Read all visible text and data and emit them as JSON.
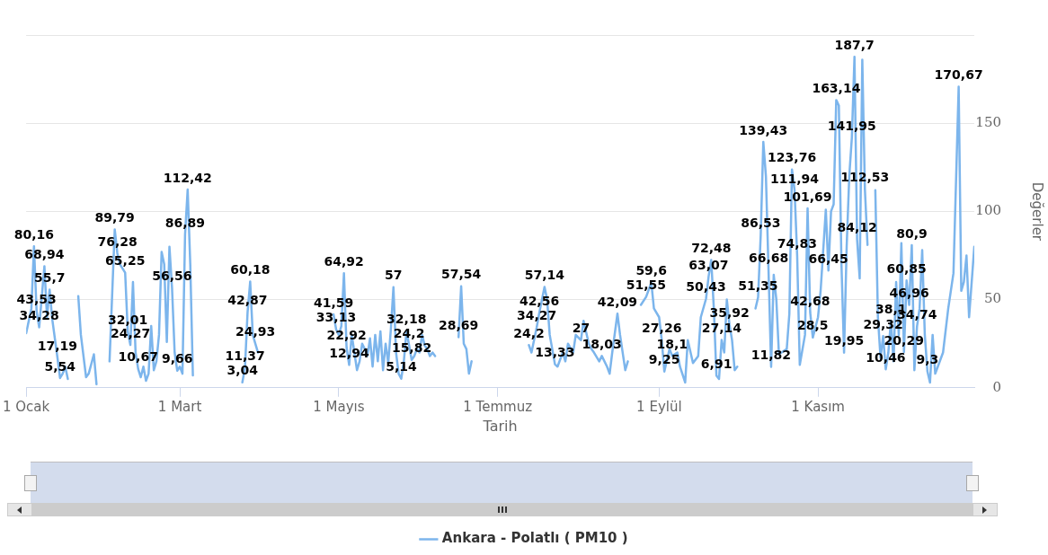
{
  "chart_data": {
    "type": "line",
    "xlabel": "Tarih",
    "ylabel": "Değerler",
    "xlim": [
      "--01-01",
      "--12-31"
    ],
    "xticks": [
      {
        "value": "--01-01",
        "label": "1 Ocak"
      },
      {
        "value": "--03-01",
        "label": "1 Mart"
      },
      {
        "value": "--05-01",
        "label": "1 Mayıs"
      },
      {
        "value": "--07-01",
        "label": "1 Temmuz"
      },
      {
        "value": "--09-01",
        "label": "1 Eylül"
      },
      {
        "value": "--11-01",
        "label": "1 Kasım"
      }
    ],
    "ylim": [
      0,
      200
    ],
    "yticks": [
      0,
      50,
      100,
      150,
      {
        "value": 200,
        "label": null
      }
    ],
    "grid": "y",
    "legend": "bottom",
    "marker": "none",
    "x": [
      "--01-01",
      "--01-03",
      "--01-04",
      "--01-05",
      "--01-06",
      "--01-08",
      "--01-09",
      "--01-10",
      "--01-11",
      "--01-13",
      "--01-14",
      "--01-15",
      "--01-16",
      "--01-17",
      "--01-19",
      "--01-21",
      "--01-22",
      "--01-24",
      "--01-25",
      "--01-27",
      "--01-28",
      "--01-30",
      "--02-02",
      "--02-04",
      "--02-05",
      "--02-06",
      "--02-08",
      "--02-09",
      "--02-10",
      "--02-11",
      "--02-12",
      "--02-13",
      "--02-14",
      "--02-15",
      "--02-16",
      "--02-17",
      "--02-18",
      "--02-19",
      "--02-20",
      "--02-21",
      "--02-22",
      "--02-23",
      "--02-24",
      "--02-25",
      "--02-26",
      "--02-27",
      "--02-28",
      "--03-01",
      "--03-02",
      "--03-03",
      "--03-04",
      "--03-05",
      "--03-06",
      "--03-08",
      "--03-25",
      "--03-26",
      "--03-27",
      "--03-28",
      "--03-29",
      "--03-30",
      "--03-31",
      "--04-02",
      "--04-29",
      "--04-30",
      "--05-01",
      "--05-02",
      "--05-03",
      "--05-04",
      "--05-05",
      "--05-06",
      "--05-07",
      "--05-08",
      "--05-09",
      "--05-10",
      "--05-11",
      "--05-12",
      "--05-13",
      "--05-14",
      "--05-15",
      "--05-16",
      "--05-17",
      "--05-18",
      "--05-19",
      "--05-20",
      "--05-21",
      "--05-22",
      "--05-23",
      "--05-24",
      "--05-25",
      "--05-26",
      "--05-27",
      "--05-28",
      "--05-29",
      "--05-30",
      "--05-31",
      "--06-01",
      "--06-02",
      "--06-03",
      "--06-04",
      "--06-05",
      "--06-06",
      "--06-07",
      "--06-09",
      "--06-16",
      "--06-17",
      "--06-18",
      "--06-19",
      "--06-20",
      "--06-21",
      "--06-23",
      "--07-13",
      "--07-14",
      "--07-16",
      "--07-17",
      "--07-19",
      "--07-20",
      "--07-21",
      "--07-23",
      "--07-24",
      "--07-26",
      "--07-27",
      "--07-28",
      "--07-30",
      "--07-31",
      "--08-02",
      "--08-03",
      "--08-05",
      "--08-06",
      "--08-07",
      "--08-09",
      "--08-10",
      "--08-12",
      "--08-13",
      "--08-14",
      "--08-16",
      "--08-17",
      "--08-19",
      "--08-20",
      "--08-23",
      "--08-25",
      "--08-27",
      "--08-29",
      "--08-30",
      "--09-01",
      "--09-02",
      "--09-03",
      "--09-05",
      "--09-06",
      "--09-08",
      "--09-09",
      "--09-11",
      "--09-12",
      "--09-14",
      "--09-16",
      "--09-17",
      "--09-19",
      "--09-20",
      "--09-21",
      "--09-22",
      "--09-23",
      "--09-24",
      "--09-25",
      "--09-26",
      "--09-27",
      "--09-28",
      "--09-29",
      "--09-30",
      "--10-01",
      "--10-03",
      "--10-08",
      "--10-09",
      "--10-10",
      "--10-11",
      "--10-12",
      "--10-13",
      "--10-14",
      "--10-15",
      "--10-16",
      "--10-17",
      "--10-18",
      "--10-20",
      "--10-21",
      "--10-22",
      "--10-23",
      "--10-24",
      "--10-25",
      "--10-27",
      "--10-28",
      "--10-29",
      "--10-30",
      "--11-01",
      "--11-02",
      "--11-04",
      "--11-05",
      "--11-06",
      "--11-07",
      "--11-08",
      "--11-09",
      "--11-10",
      "--11-11",
      "--11-12",
      "--11-13",
      "--11-14",
      "--11-15",
      "--11-16",
      "--11-17",
      "--11-18",
      "--11-19",
      "--11-20",
      "--11-21",
      "--11-23",
      "--11-24",
      "--11-25",
      "--11-26",
      "--11-27",
      "--11-28",
      "--11-29",
      "--11-30",
      "--12-01",
      "--12-02",
      "--12-03",
      "--12-04",
      "--12-05",
      "--12-06",
      "--12-07",
      "--12-08",
      "--12-09",
      "--12-10",
      "--12-11",
      "--12-12",
      "--12-13",
      "--12-14",
      "--12-15",
      "--12-16",
      "--12-17",
      "--12-19",
      "--12-21",
      "--12-23",
      "--12-25",
      "--12-26",
      "--12-27",
      "--12-28",
      "--12-29",
      "--12-31"
    ],
    "series": [
      {
        "name": "Ankara - Polatlı ( PM10 )",
        "color": "#7cb5ec",
        "values": [
          31,
          45,
          80.16,
          43.53,
          34.28,
          68.94,
          40,
          55.7,
          39,
          17.19,
          5.54,
          8,
          12,
          5,
          null,
          52,
          30,
          6,
          8,
          19,
          2,
          null,
          15,
          89.79,
          76.28,
          70,
          65.25,
          32.01,
          24.27,
          60,
          20,
          10.67,
          6,
          12,
          4,
          8,
          35,
          10,
          15,
          30,
          77,
          70,
          26,
          80,
          56.56,
          20,
          9.66,
          12,
          8,
          86.89,
          112.42,
          70,
          7,
          null,
          3.04,
          11.37,
          42.87,
          60.18,
          30,
          24.93,
          20,
          null,
          41.59,
          33.13,
          30,
          35,
          64.92,
          22.92,
          12.94,
          30,
          20,
          10,
          15,
          25,
          22,
          18,
          28,
          12,
          30,
          15,
          32,
          10,
          25,
          14,
          33,
          57,
          20,
          8,
          5.14,
          15,
          32.18,
          24.2,
          15.82,
          18,
          22,
          20,
          30,
          24,
          22,
          18,
          20,
          18,
          null,
          28.69,
          57.54,
          25,
          22,
          8,
          15,
          null,
          24.2,
          20,
          34.27,
          42.56,
          57.14,
          50,
          30,
          13.33,
          12,
          20,
          15,
          25,
          20,
          30,
          27,
          38,
          25,
          22,
          20,
          15,
          18.03,
          12,
          8,
          20,
          42.09,
          30,
          10,
          15,
          null,
          47,
          51.55,
          59.6,
          45,
          40,
          27.26,
          9.25,
          22,
          18.1,
          20,
          12,
          3,
          27,
          14,
          18,
          40,
          50.43,
          63.07,
          72.48,
          45,
          6.91,
          5,
          27.14,
          20,
          50,
          35.92,
          27,
          10,
          12,
          null,
          45,
          51.35,
          86.53,
          139.43,
          120,
          66.68,
          11.82,
          64,
          50,
          19,
          20,
          22,
          42,
          123.76,
          111.94,
          74.83,
          13,
          30,
          101.69,
          42.68,
          28.5,
          40,
          55,
          101,
          66.45,
          100,
          104,
          163.14,
          160,
          70,
          19.95,
          80,
          120,
          141.95,
          187.7,
          84.12,
          62,
          186,
          112.53,
          81,
          null,
          112,
          40,
          17,
          29.32,
          10.46,
          20,
          38.1,
          15,
          60,
          30,
          82,
          20.29,
          60.85,
          46.96,
          80.9,
          10,
          34.74,
          45,
          78,
          30,
          9.3,
          3,
          30,
          8,
          12,
          20,
          45,
          65,
          170.67,
          55,
          60,
          75,
          40,
          80
        ],
        "value_labels": [
          null,
          null,
          "80,16",
          "43,53",
          "34,28",
          "68,94",
          null,
          "55,7",
          null,
          "17,19",
          "5,54",
          null,
          null,
          null,
          null,
          null,
          null,
          null,
          null,
          null,
          null,
          null,
          null,
          "89,79",
          "76,28",
          null,
          "65,25",
          "32,01",
          "24,27",
          null,
          null,
          "10,67",
          null,
          null,
          null,
          null,
          null,
          null,
          null,
          null,
          null,
          null,
          null,
          null,
          "56,56",
          null,
          "9,66",
          null,
          null,
          "86,89",
          "112,42",
          null,
          null,
          null,
          "3,04",
          "11,37",
          "42,87",
          "60,18",
          null,
          "24,93",
          null,
          null,
          "41,59",
          "33,13",
          null,
          null,
          "64,92",
          "22,92",
          "12,94",
          null,
          null,
          null,
          null,
          null,
          null,
          null,
          null,
          null,
          null,
          null,
          null,
          null,
          null,
          null,
          null,
          "57",
          null,
          null,
          "5,14",
          null,
          "32,18",
          "24,2",
          "15,82",
          null,
          null,
          null,
          null,
          null,
          null,
          null,
          null,
          null,
          null,
          "28,69",
          "57,54",
          null,
          null,
          null,
          null,
          null,
          "24,2",
          null,
          "34,27",
          "42,56",
          "57,14",
          null,
          null,
          "13,33",
          null,
          null,
          null,
          null,
          null,
          null,
          "27",
          null,
          null,
          null,
          null,
          null,
          "18,03",
          null,
          null,
          null,
          "42,09",
          null,
          null,
          null,
          null,
          null,
          "51,55",
          "59,6",
          null,
          null,
          "27,26",
          "9,25",
          null,
          "18,1",
          null,
          null,
          null,
          null,
          null,
          null,
          null,
          "50,43",
          "63,07",
          "72,48",
          null,
          "6,91",
          null,
          "27,14",
          null,
          null,
          "35,92",
          null,
          null,
          null,
          null,
          null,
          "51,35",
          "86,53",
          "139,43",
          null,
          "66,68",
          "11,82",
          null,
          null,
          null,
          null,
          null,
          null,
          "123,76",
          "111,94",
          "74,83",
          null,
          null,
          "101,69",
          "42,68",
          "28,5",
          null,
          null,
          null,
          "66,45",
          null,
          null,
          "163,14",
          null,
          null,
          "19,95",
          null,
          null,
          "141,95",
          "187,7",
          "84,12",
          null,
          null,
          "112,53",
          null,
          null,
          null,
          null,
          null,
          "29,32",
          "10,46",
          null,
          "38,1",
          null,
          null,
          null,
          null,
          "20,29",
          "60,85",
          "46,96",
          "80,9",
          null,
          "34,74",
          null,
          null,
          null,
          "9,3",
          null,
          null,
          null,
          null,
          null,
          null,
          null,
          "170,67",
          null,
          null,
          null,
          null,
          null
        ]
      }
    ]
  }
}
